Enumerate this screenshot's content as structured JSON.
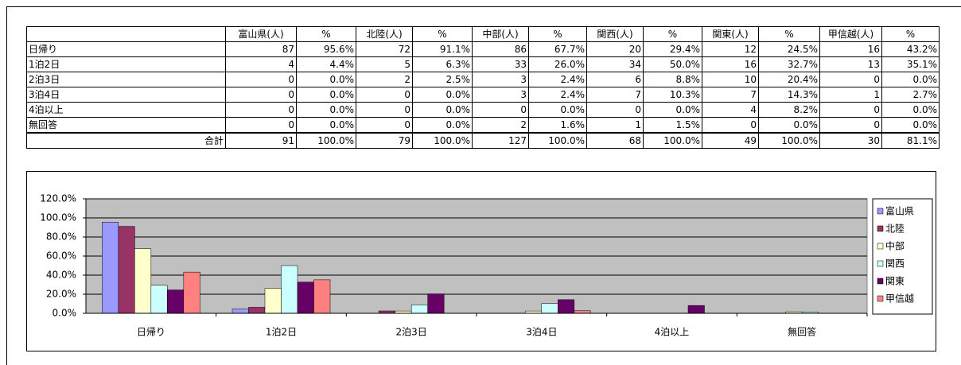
{
  "table": {
    "headers": [
      "富山県(人)",
      "%",
      "北陸(人)",
      "%",
      "中部(人)",
      "%",
      "関西(人)",
      "%",
      "関東(人)",
      "%",
      "甲信越(人)",
      "%"
    ],
    "rows": [
      [
        "日帰り",
        "87",
        "95.6%",
        "72",
        "91.1%",
        "86",
        "67.7%",
        "20",
        "29.4%",
        "12",
        "24.5%",
        "16",
        "43.2%"
      ],
      [
        "1泊2日",
        "4",
        "4.4%",
        "5",
        "6.3%",
        "33",
        "26.0%",
        "34",
        "50.0%",
        "16",
        "32.7%",
        "13",
        "35.1%"
      ],
      [
        "2泊3日",
        "0",
        "0.0%",
        "2",
        "2.5%",
        "3",
        "2.4%",
        "6",
        "8.8%",
        "10",
        "20.4%",
        "0",
        "0.0%"
      ],
      [
        "3泊4日",
        "0",
        "0.0%",
        "0",
        "0.0%",
        "3",
        "2.4%",
        "7",
        "10.3%",
        "7",
        "14.3%",
        "1",
        "2.7%"
      ],
      [
        "4泊以上",
        "0",
        "0.0%",
        "0",
        "0.0%",
        "0",
        "0.0%",
        "0",
        "0.0%",
        "4",
        "8.2%",
        "0",
        "0.0%"
      ],
      [
        "無回答",
        "0",
        "0.0%",
        "0",
        "0.0%",
        "2",
        "1.6%",
        "1",
        "1.5%",
        "0",
        "0.0%",
        "0",
        "0.0%"
      ],
      [
        "合計",
        "91",
        "100.0%",
        "79",
        "100.0%",
        "127",
        "100.0%",
        "68",
        "100.0%",
        "49",
        "100.0%",
        "30",
        "81.1%"
      ]
    ]
  },
  "chart_data": {
    "type": "bar",
    "categories": [
      "日帰り",
      "1泊2日",
      "2泊3日",
      "3泊4日",
      "4泊以上",
      "無回答"
    ],
    "series": [
      {
        "name": "富山県",
        "color": "#9999ff",
        "values": [
          95.6,
          4.4,
          0,
          0,
          0,
          0
        ]
      },
      {
        "name": "北陸",
        "color": "#993366",
        "values": [
          91.1,
          6.3,
          2.5,
          0,
          0,
          0
        ]
      },
      {
        "name": "中部",
        "color": "#ffffcc",
        "values": [
          67.7,
          26.0,
          2.4,
          2.4,
          0,
          1.6
        ]
      },
      {
        "name": "関西",
        "color": "#ccffff",
        "values": [
          29.4,
          50.0,
          8.8,
          10.3,
          0,
          1.5
        ]
      },
      {
        "name": "関東",
        "color": "#660066",
        "values": [
          24.5,
          32.7,
          20.4,
          14.3,
          8.2,
          0
        ]
      },
      {
        "name": "甲信越",
        "color": "#ff8080",
        "values": [
          43.2,
          35.1,
          0,
          2.7,
          0,
          0
        ]
      }
    ],
    "ylim": [
      0,
      120
    ],
    "yticks": [
      {
        "value": 0,
        "label": "0.0%"
      },
      {
        "value": 20,
        "label": "20.0%"
      },
      {
        "value": 40,
        "label": "40.0%"
      },
      {
        "value": 60,
        "label": "60.0%"
      },
      {
        "value": 80,
        "label": "80.0%"
      },
      {
        "value": 100,
        "label": "100.0%"
      },
      {
        "value": 120,
        "label": "120.0%"
      }
    ],
    "grid": true,
    "legend": "right",
    "plot_background": "#c0c0c0"
  }
}
